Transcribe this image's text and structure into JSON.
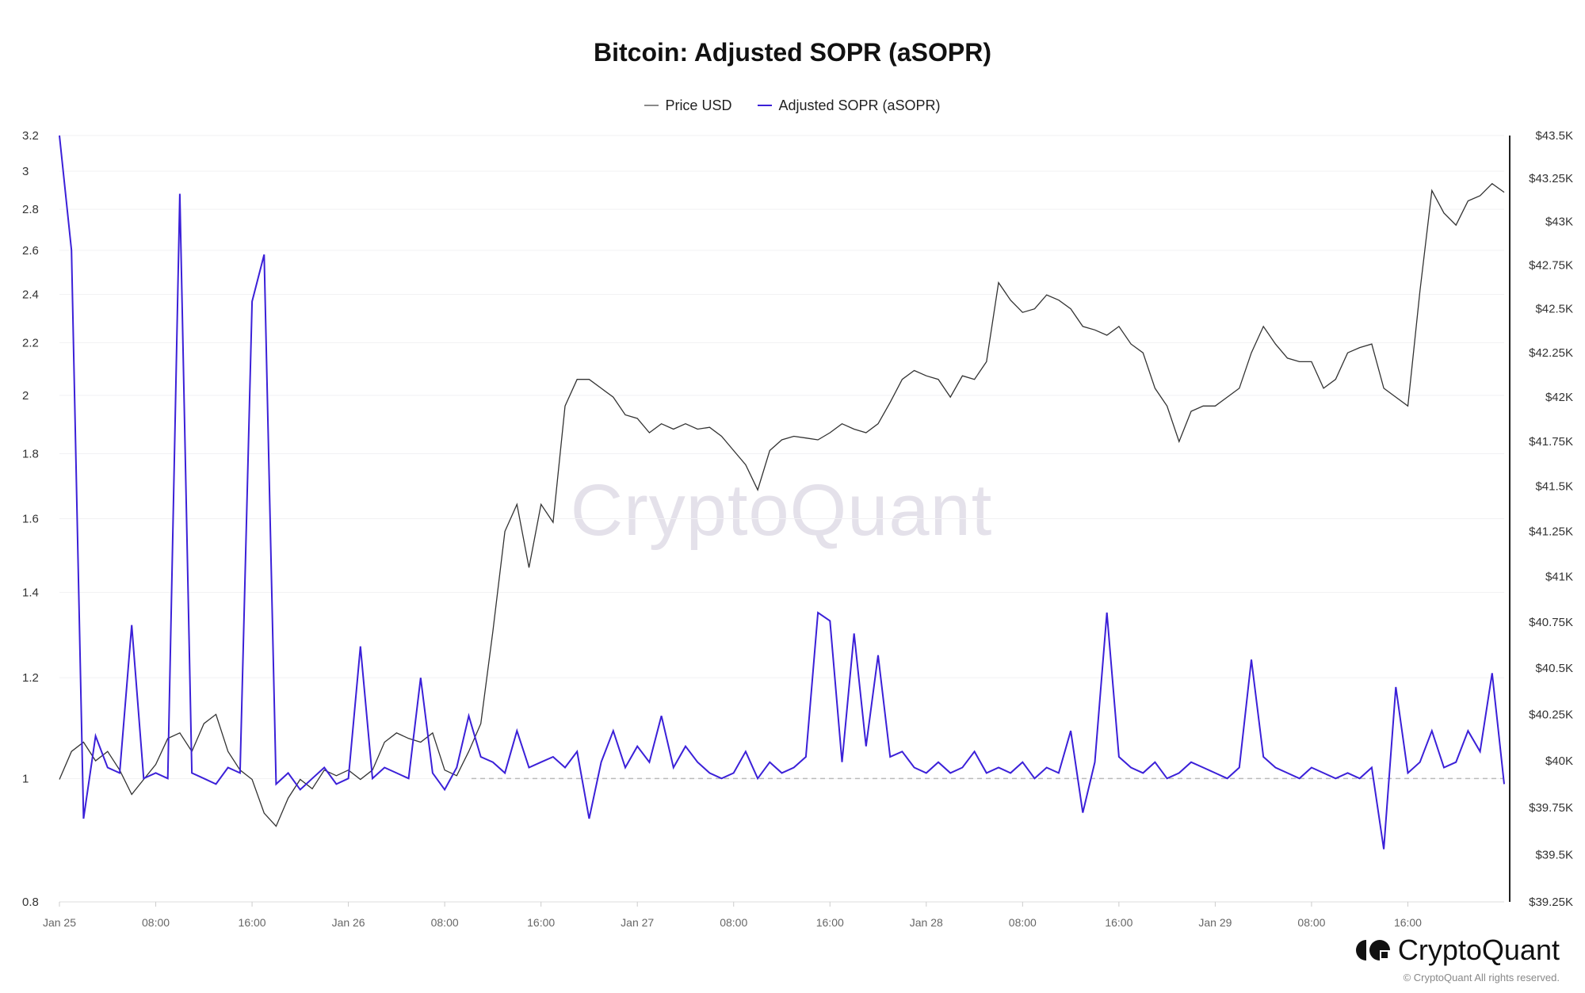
{
  "title": "Bitcoin: Adjusted SOPR (aSOPR)",
  "legend": [
    {
      "name": "Price USD",
      "color": "#8a8a8a"
    },
    {
      "name": "Adjusted SOPR (aSOPR)",
      "color": "#3b20d8"
    }
  ],
  "watermark": "CryptoQuant",
  "brand": {
    "name": "CryptoQuant",
    "copyright": "© CryptoQuant All rights reserved."
  },
  "chart_data": {
    "type": "line",
    "title": "Bitcoin: Adjusted SOPR (aSOPR)",
    "x_tick_labels": [
      "Jan 25",
      "08:00",
      "16:00",
      "Jan 26",
      "08:00",
      "16:00",
      "Jan 27",
      "08:00",
      "16:00",
      "Jan 28",
      "08:00",
      "16:00",
      "Jan 29",
      "08:00",
      "16:00"
    ],
    "x_range": [
      "Jan 25 00:00",
      "Jan 30 00:00"
    ],
    "left_axis": {
      "scale": "log",
      "range": [
        0.8,
        3.2
      ],
      "ticks": [
        "0.8",
        "1",
        "1.2",
        "1.4",
        "1.6",
        "1.8",
        "2",
        "2.2",
        "2.4",
        "2.6",
        "2.8",
        "3",
        "3.2"
      ],
      "tick_values": [
        0.8,
        1,
        1.2,
        1.4,
        1.6,
        1.8,
        2,
        2.2,
        2.4,
        2.6,
        2.8,
        3,
        3.2
      ]
    },
    "right_axis": {
      "scale": "log",
      "range": [
        39250,
        43500
      ],
      "ticks": [
        "$39.25K",
        "$39.5K",
        "$39.75K",
        "$40K",
        "$40.25K",
        "$40.5K",
        "$40.75K",
        "$41K",
        "$41.25K",
        "$41.5K",
        "$41.75K",
        "$42K",
        "$42.25K",
        "$42.5K",
        "$42.75K",
        "$43K",
        "$43.25K",
        "$43.5K"
      ],
      "tick_values": [
        39250,
        39500,
        39750,
        40000,
        40250,
        40500,
        40750,
        41000,
        41250,
        41500,
        41750,
        42000,
        42250,
        42500,
        42750,
        43000,
        43250,
        43500
      ]
    },
    "reference_line": {
      "axis": "left",
      "value": 1,
      "style": "dashed"
    },
    "grid": true,
    "legend_position": "top-center",
    "series": [
      {
        "name": "Price USD",
        "axis": "right",
        "unit": "USD (thousands)",
        "color": "#333333",
        "values": [
          39.9,
          40.05,
          40.1,
          40.0,
          40.05,
          39.95,
          39.82,
          39.9,
          39.98,
          40.12,
          40.15,
          40.05,
          40.2,
          40.25,
          40.05,
          39.95,
          39.9,
          39.72,
          39.65,
          39.8,
          39.9,
          39.85,
          39.95,
          39.92,
          39.95,
          39.9,
          39.95,
          40.1,
          40.15,
          40.12,
          40.1,
          40.15,
          39.95,
          39.92,
          40.05,
          40.2,
          40.7,
          41.25,
          41.4,
          41.05,
          41.4,
          41.3,
          41.95,
          42.1,
          42.1,
          42.05,
          42.0,
          41.9,
          41.88,
          41.8,
          41.85,
          41.82,
          41.85,
          41.82,
          41.83,
          41.78,
          41.7,
          41.62,
          41.48,
          41.7,
          41.76,
          41.78,
          41.77,
          41.76,
          41.8,
          41.85,
          41.82,
          41.8,
          41.85,
          41.97,
          42.1,
          42.15,
          42.12,
          42.1,
          42.0,
          42.12,
          42.1,
          42.2,
          42.65,
          42.55,
          42.48,
          42.5,
          42.58,
          42.55,
          42.5,
          42.4,
          42.38,
          42.35,
          42.4,
          42.3,
          42.25,
          42.05,
          41.95,
          41.75,
          41.92,
          41.95,
          41.95,
          42.0,
          42.05,
          42.25,
          42.4,
          42.3,
          42.22,
          42.2,
          42.2,
          42.05,
          42.1,
          42.25,
          42.28,
          42.3,
          42.05,
          42.0,
          41.95,
          42.6,
          43.18,
          43.05,
          42.98,
          43.12,
          43.15,
          43.22,
          43.17
        ]
      },
      {
        "name": "Adjusted SOPR (aSOPR)",
        "axis": "left",
        "color": "#3b20d8",
        "values": [
          3.2,
          2.6,
          0.93,
          1.08,
          1.02,
          1.01,
          1.32,
          1.0,
          1.01,
          1.0,
          2.88,
          1.01,
          1.0,
          0.99,
          1.02,
          1.01,
          2.37,
          2.58,
          0.99,
          1.01,
          0.98,
          1.0,
          1.02,
          0.99,
          1.0,
          1.27,
          1.0,
          1.02,
          1.01,
          1.0,
          1.2,
          1.01,
          0.98,
          1.02,
          1.12,
          1.04,
          1.03,
          1.01,
          1.09,
          1.02,
          1.03,
          1.04,
          1.02,
          1.05,
          0.93,
          1.03,
          1.09,
          1.02,
          1.06,
          1.03,
          1.12,
          1.02,
          1.06,
          1.03,
          1.01,
          1.0,
          1.01,
          1.05,
          1.0,
          1.03,
          1.01,
          1.02,
          1.04,
          1.35,
          1.33,
          1.03,
          1.3,
          1.06,
          1.25,
          1.04,
          1.05,
          1.02,
          1.01,
          1.03,
          1.01,
          1.02,
          1.05,
          1.01,
          1.02,
          1.01,
          1.03,
          1.0,
          1.02,
          1.01,
          1.09,
          0.94,
          1.03,
          1.35,
          1.04,
          1.02,
          1.01,
          1.03,
          1.0,
          1.01,
          1.03,
          1.02,
          1.01,
          1.0,
          1.02,
          1.24,
          1.04,
          1.02,
          1.01,
          1.0,
          1.02,
          1.01,
          1.0,
          1.01,
          1.0,
          1.02,
          0.88,
          1.18,
          1.01,
          1.03,
          1.09,
          1.02,
          1.03,
          1.09,
          1.05,
          1.21,
          0.99
        ]
      }
    ]
  }
}
